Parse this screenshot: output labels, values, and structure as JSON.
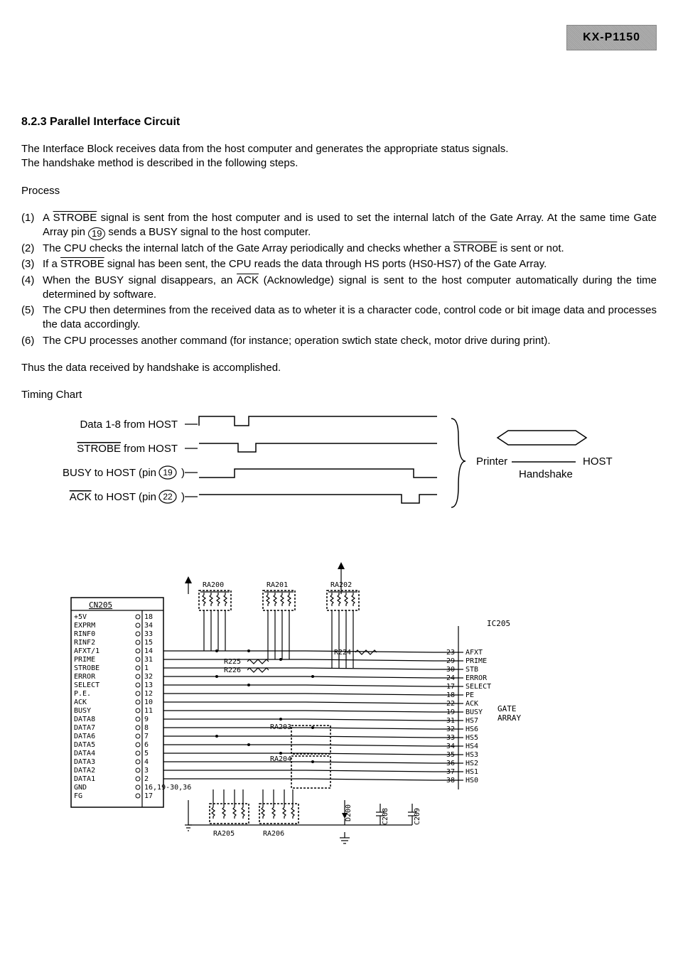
{
  "badge": "KX-P1150",
  "section_title": "8.2.3 Parallel Interface Circuit",
  "intro_line1": "The Interface Block receives data from the host computer and generates the appropriate status signals.",
  "intro_line2": "The handshake method is described in the following steps.",
  "process_label": "Process",
  "process": [
    {
      "n": "(1)",
      "pre": "A ",
      "ov": "STROBE",
      "post": " signal is sent from the host computer and is used to set the internal latch of the Gate Array. At the same time Gate Array pin ",
      "pin": "19",
      "tail": " sends a BUSY signal to the host computer."
    },
    {
      "n": "(2)",
      "pre": "The CPU checks the internal latch of the Gate Array periodically and checks whether a ",
      "ov": "STROBE",
      "post": " is sent or not.",
      "pin": "",
      "tail": ""
    },
    {
      "n": "(3)",
      "pre": "If a ",
      "ov": "STROBE",
      "post": " signal has been sent, the CPU reads the data through HS ports (HS0-HS7) of the Gate Array.",
      "pin": "",
      "tail": ""
    },
    {
      "n": "(4)",
      "pre": "When the BUSY signal disappears, an ",
      "ov": "ACK",
      "post": " (Acknowledge) signal is sent to the host computer automatically during the time determined by software.",
      "pin": "",
      "tail": ""
    },
    {
      "n": "(5)",
      "pre": "The CPU then determines from the received data as to wheter it is a character code, control code or bit image data and processes the data accordingly.",
      "ov": "",
      "post": "",
      "pin": "",
      "tail": ""
    },
    {
      "n": "(6)",
      "pre": "The CPU processes another command (for instance; operation swtich state check, motor drive during print).",
      "ov": "",
      "post": "",
      "pin": "",
      "tail": ""
    }
  ],
  "closing": "Thus the data received by handshake is accomplished.",
  "timing_label": "Timing Chart",
  "timing": {
    "rows": [
      {
        "label": "Data 1-8 from HOST",
        "overline": false,
        "pin": ""
      },
      {
        "label": "STROBE from HOST",
        "overline": true,
        "pin": ""
      },
      {
        "label": "BUSY to HOST (pin ",
        "overline": false,
        "pin": "19",
        "tail": " )"
      },
      {
        "label": "ACK to HOST (pin ",
        "overline": true,
        "pin": "22",
        "tail": " )",
        "ov_label": "ACK"
      }
    ],
    "printer": "Printer",
    "host": "HOST",
    "handshake": "Handshake"
  },
  "schematic": {
    "connector": "CN205",
    "resistors_top": [
      "RA200",
      "RA201",
      "RA202"
    ],
    "resistors_mid": [
      "R225",
      "R226",
      "R224",
      "RA203",
      "RA204"
    ],
    "resistors_bot": [
      "RA205",
      "RA206"
    ],
    "caps": [
      "D200",
      "C208",
      "C209"
    ],
    "ic_label": "IC205",
    "gate": "GATE",
    "array": "ARRAY",
    "left_signals": [
      {
        "name": "+5V",
        "pin": "18"
      },
      {
        "name": "EXPRM",
        "pin": "34"
      },
      {
        "name": "RINF0",
        "pin": "33"
      },
      {
        "name": "RINF2",
        "pin": "15"
      },
      {
        "name": "AFXT/1",
        "pin": "14"
      },
      {
        "name": "PRIME",
        "pin": "31"
      },
      {
        "name": "STROBE",
        "pin": "1"
      },
      {
        "name": "ERROR",
        "pin": "32"
      },
      {
        "name": "SELECT",
        "pin": "13"
      },
      {
        "name": "P.E.",
        "pin": "12"
      },
      {
        "name": "ACK",
        "pin": "10"
      },
      {
        "name": "BUSY",
        "pin": "11"
      },
      {
        "name": "DATA8",
        "pin": "9"
      },
      {
        "name": "DATA7",
        "pin": "8"
      },
      {
        "name": "DATA6",
        "pin": "7"
      },
      {
        "name": "DATA5",
        "pin": "6"
      },
      {
        "name": "DATA4",
        "pin": "5"
      },
      {
        "name": "DATA3",
        "pin": "4"
      },
      {
        "name": "DATA2",
        "pin": "3"
      },
      {
        "name": "DATA1",
        "pin": "2"
      },
      {
        "name": "GND",
        "pin": "16,19-30,36"
      },
      {
        "name": "FG",
        "pin": "17"
      }
    ],
    "right_signals": [
      {
        "name": "AFXT",
        "pin": "23"
      },
      {
        "name": "PRIME",
        "pin": "29"
      },
      {
        "name": "STB",
        "pin": "30"
      },
      {
        "name": "ERROR",
        "pin": "24"
      },
      {
        "name": "SELECT",
        "pin": "17"
      },
      {
        "name": "PE",
        "pin": "18"
      },
      {
        "name": "ACK",
        "pin": "22"
      },
      {
        "name": "BUSY",
        "pin": "19"
      },
      {
        "name": "HS7",
        "pin": "31"
      },
      {
        "name": "HS6",
        "pin": "32"
      },
      {
        "name": "HS5",
        "pin": "33"
      },
      {
        "name": "HS4",
        "pin": "34"
      },
      {
        "name": "HS3",
        "pin": "35"
      },
      {
        "name": "HS2",
        "pin": "36"
      },
      {
        "name": "HS1",
        "pin": "37"
      },
      {
        "name": "HS0",
        "pin": "38"
      }
    ]
  }
}
